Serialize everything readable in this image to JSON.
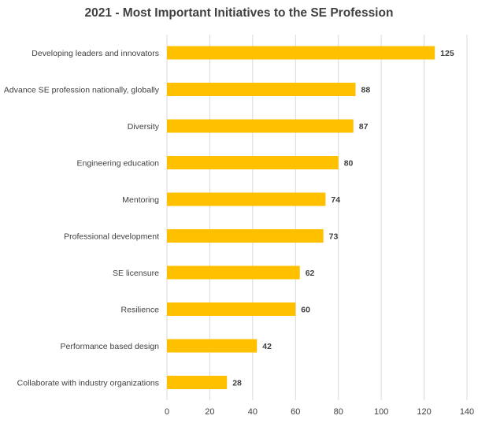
{
  "chart_data": {
    "type": "bar",
    "orientation": "horizontal",
    "title": "2021 - Most Important Initiatives to the SE Profession",
    "categories": [
      "Developing leaders and innovators",
      "Advance SE profession nationally, globally",
      "Diversity",
      "Engineering education",
      "Mentoring",
      "Professional development",
      "SE licensure",
      "Resilience",
      "Performance based design",
      "Collaborate with industry organizations"
    ],
    "values": [
      125,
      88,
      87,
      80,
      74,
      73,
      62,
      60,
      42,
      28
    ],
    "xlim": [
      0,
      140
    ],
    "xticks": [
      0,
      20,
      40,
      60,
      80,
      100,
      120,
      140
    ],
    "grid": true,
    "data_labels": true,
    "bar_color": "#FFC000",
    "gridline_color": "#D9D9D9",
    "text_color": "#404040"
  }
}
